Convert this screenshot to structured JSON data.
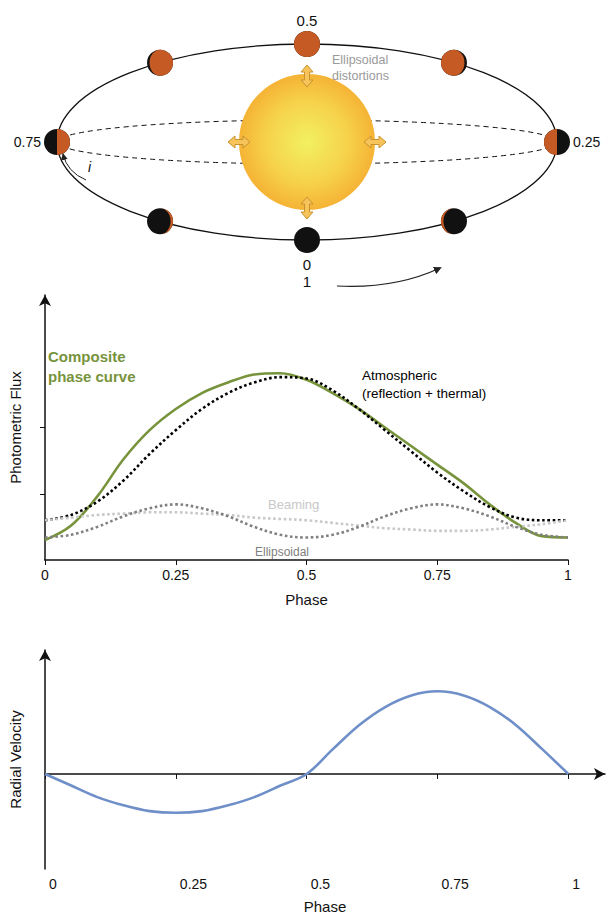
{
  "diagram": {
    "phase_labels": {
      "top": "0.5",
      "left": "0.75",
      "right": "0.25",
      "bottom": [
        "0",
        "1"
      ]
    },
    "inclination_label": "i",
    "annotation": "Ellipsoidal distortions"
  },
  "chart_data": [
    {
      "type": "line",
      "xlabel": "Phase",
      "ylabel": "Photometric Flux",
      "x": [
        0,
        0.05,
        0.1,
        0.15,
        0.2,
        0.25,
        0.3,
        0.35,
        0.4,
        0.45,
        0.5,
        0.55,
        0.6,
        0.65,
        0.7,
        0.75,
        0.8,
        0.85,
        0.9,
        0.95,
        1
      ],
      "xlim": [
        0,
        1
      ],
      "xticks": [
        0,
        0.25,
        0.5,
        0.75,
        1
      ],
      "ylim": [
        0,
        1
      ],
      "yticks": [
        0.25,
        0.5
      ],
      "tick_labels": "x",
      "grid": false,
      "series": [
        {
          "name": "Composite phase curve",
          "color": "#77933c",
          "line_style": "solid",
          "values": [
            0.075,
            0.13,
            0.24,
            0.38,
            0.49,
            0.57,
            0.63,
            0.67,
            0.7,
            0.705,
            0.68,
            0.63,
            0.57,
            0.5,
            0.43,
            0.36,
            0.29,
            0.21,
            0.14,
            0.09,
            0.085
          ]
        },
        {
          "name": "Atmospheric (reflection + thermal)",
          "color": "#000000",
          "line_style": "dotted",
          "values": [
            0.15,
            0.17,
            0.22,
            0.3,
            0.4,
            0.49,
            0.57,
            0.63,
            0.67,
            0.69,
            0.685,
            0.64,
            0.57,
            0.49,
            0.41,
            0.33,
            0.26,
            0.2,
            0.16,
            0.15,
            0.15
          ]
        },
        {
          "name": "Beaming",
          "color": "#c8c8c8",
          "line_style": "dotted",
          "values": [
            0.15,
            0.16,
            0.17,
            0.175,
            0.18,
            0.18,
            0.175,
            0.17,
            0.16,
            0.155,
            0.15,
            0.14,
            0.13,
            0.12,
            0.115,
            0.11,
            0.11,
            0.115,
            0.125,
            0.135,
            0.15
          ]
        },
        {
          "name": "Ellipsoidal",
          "color": "#808080",
          "line_style": "dotted",
          "values": [
            0.085,
            0.095,
            0.125,
            0.165,
            0.195,
            0.21,
            0.195,
            0.165,
            0.125,
            0.095,
            0.085,
            0.095,
            0.125,
            0.165,
            0.195,
            0.21,
            0.195,
            0.165,
            0.125,
            0.095,
            0.085
          ]
        }
      ]
    },
    {
      "type": "line",
      "xlabel": "Phase",
      "ylabel": "Radial Velocity",
      "x": [
        0,
        0.05,
        0.1,
        0.15,
        0.2,
        0.25,
        0.3,
        0.35,
        0.4,
        0.45,
        0.5,
        0.55,
        0.6,
        0.65,
        0.7,
        0.75,
        0.8,
        0.85,
        0.9,
        0.95,
        1
      ],
      "xlim": [
        0,
        1.07
      ],
      "xticks": [
        0,
        0.25,
        0.5,
        0.75,
        1
      ],
      "ylim": [
        -1.15,
        1.5
      ],
      "yticks": [],
      "tick_labels": "x",
      "grid": false,
      "color": "#6f8fc8",
      "line_style": "solid",
      "values": [
        0,
        -0.14,
        -0.28,
        -0.38,
        -0.45,
        -0.47,
        -0.45,
        -0.38,
        -0.28,
        -0.14,
        0,
        0.3,
        0.59,
        0.81,
        0.95,
        1.0,
        0.95,
        0.81,
        0.59,
        0.3,
        0
      ]
    }
  ]
}
